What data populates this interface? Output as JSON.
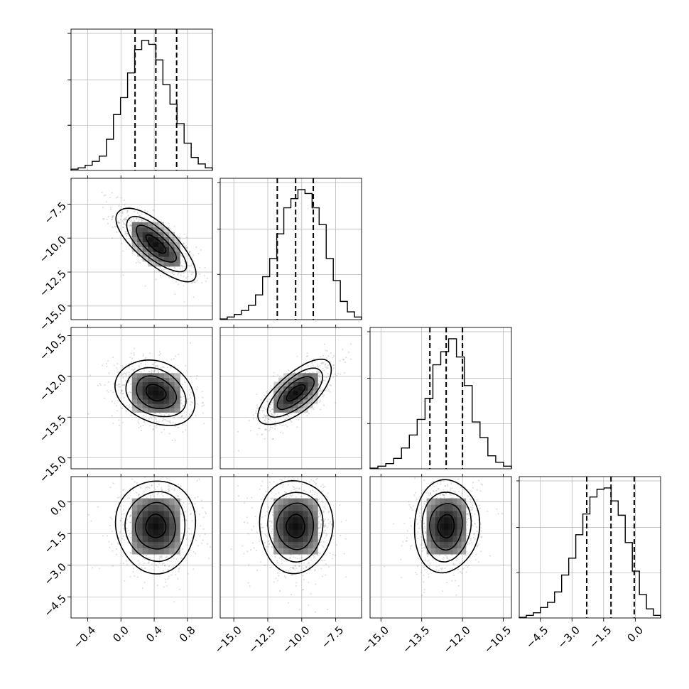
{
  "chart_data": {
    "type": "corner",
    "parameters": [
      {
        "range": [
          -0.6,
          1.1
        ],
        "ticks": [
          -0.4,
          0.0,
          0.4,
          0.8
        ],
        "tick_labels": [
          "−0.4",
          "0.0",
          "0.4",
          "0.8"
        ],
        "quantiles": [
          0.17,
          0.42,
          0.67
        ],
        "histogram": [
          0.01,
          0.02,
          0.04,
          0.07,
          0.11,
          0.24,
          0.43,
          0.56,
          0.75,
          0.93,
          1.0,
          0.97,
          0.85,
          0.66,
          0.51,
          0.36,
          0.21,
          0.1,
          0.05,
          0.02
        ]
      },
      {
        "range": [
          -16.0,
          -5.6
        ],
        "ticks": [
          -15.0,
          -12.5,
          -10.0,
          -7.5
        ],
        "tick_labels": [
          "−15.0",
          "−12.5",
          "−10.0",
          "−7.5"
        ],
        "quantiles": [
          -11.8,
          -10.45,
          -9.15
        ],
        "histogram": [
          0.005,
          0.02,
          0.04,
          0.07,
          0.11,
          0.19,
          0.33,
          0.47,
          0.66,
          0.86,
          0.93,
          1.0,
          0.97,
          0.86,
          0.73,
          0.47,
          0.3,
          0.14,
          0.06,
          0.02
        ]
      },
      {
        "range": [
          -15.4,
          -10.2
        ],
        "ticks": [
          -15.0,
          -13.5,
          -12.0,
          -10.5
        ],
        "tick_labels": [
          "−15.0",
          "−13.5",
          "−12.0",
          "−10.5"
        ],
        "quantiles": [
          -13.2,
          -12.6,
          -12.0
        ],
        "histogram": [
          0.005,
          0.02,
          0.04,
          0.08,
          0.16,
          0.26,
          0.38,
          0.54,
          0.8,
          0.9,
          1.0,
          0.86,
          0.64,
          0.36,
          0.24,
          0.1,
          0.05,
          0.02
        ]
      },
      {
        "range": [
          -5.5,
          1.2
        ],
        "ticks": [
          -4.5,
          -3.0,
          -1.5,
          0.0
        ],
        "tick_labels": [
          "−4.5",
          "−3.0",
          "−1.5",
          "0.0"
        ],
        "quantiles": [
          -2.3,
          -1.15,
          -0.05
        ],
        "histogram": [
          0.005,
          0.02,
          0.04,
          0.08,
          0.12,
          0.2,
          0.33,
          0.46,
          0.64,
          0.8,
          0.93,
          0.99,
          1.0,
          0.9,
          0.79,
          0.58,
          0.36,
          0.18,
          0.07,
          0.02
        ]
      }
    ],
    "pairs": [
      {
        "x_param": 0,
        "y_param": 1,
        "mean": [
          0.42,
          -10.45
        ],
        "sigma": [
          0.24,
          1.35
        ],
        "rho": -0.75
      },
      {
        "x_param": 0,
        "y_param": 2,
        "mean": [
          0.42,
          -12.6
        ],
        "sigma": [
          0.24,
          0.6
        ],
        "rho": -0.25
      },
      {
        "x_param": 1,
        "y_param": 2,
        "mean": [
          -10.45,
          -12.6
        ],
        "sigma": [
          1.35,
          0.6
        ],
        "rho": 0.7
      },
      {
        "x_param": 0,
        "y_param": 3,
        "mean": [
          0.42,
          -1.15
        ],
        "sigma": [
          0.24,
          1.1
        ],
        "rho": 0.0
      },
      {
        "x_param": 1,
        "y_param": 3,
        "mean": [
          -10.45,
          -1.15
        ],
        "sigma": [
          1.35,
          1.1
        ],
        "rho": 0.0
      },
      {
        "x_param": 2,
        "y_param": 3,
        "mean": [
          -12.6,
          -1.15
        ],
        "sigma": [
          0.6,
          1.1
        ],
        "rho": 0.05
      }
    ],
    "contour_sigma_levels": [
      0.5,
      1.0,
      1.5,
      2.0
    ],
    "grid": true
  }
}
